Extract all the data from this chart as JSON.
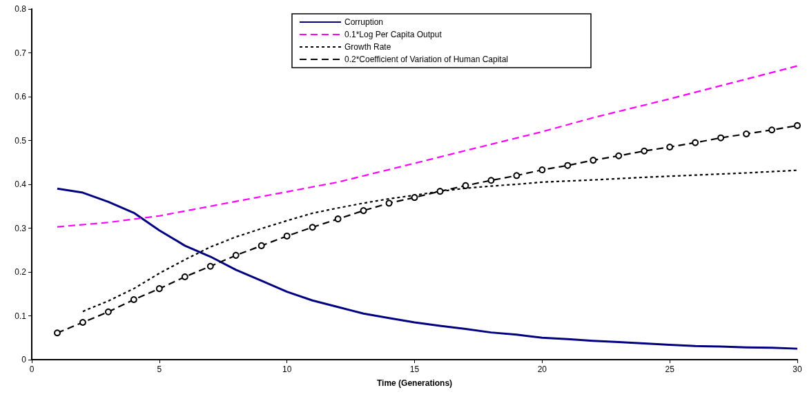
{
  "chart_data": {
    "type": "line",
    "xlabel": "Time (Generations)",
    "xlim": [
      0,
      30
    ],
    "xticks": [
      0,
      5,
      10,
      15,
      20,
      25,
      30
    ],
    "ylim": [
      0,
      0.8
    ],
    "yticks": [
      0,
      0.1,
      0.2,
      0.3,
      0.4,
      0.5,
      0.6,
      0.7,
      0.8
    ],
    "grid": false,
    "legend": "top",
    "series": [
      {
        "name": "Corruption",
        "color": "#000080",
        "line_style": "solid",
        "marker": "none",
        "x": [
          1,
          2,
          3,
          4,
          5,
          6,
          7,
          8,
          9,
          10,
          11,
          12,
          13,
          14,
          15,
          16,
          17,
          18,
          19,
          20,
          21,
          22,
          23,
          24,
          25,
          26,
          27,
          28,
          29,
          30
        ],
        "values": [
          0.39,
          0.381,
          0.36,
          0.335,
          0.295,
          0.26,
          0.235,
          0.205,
          0.18,
          0.155,
          0.135,
          0.12,
          0.105,
          0.095,
          0.085,
          0.077,
          0.07,
          0.062,
          0.057,
          0.05,
          0.047,
          0.043,
          0.04,
          0.037,
          0.034,
          0.031,
          0.03,
          0.028,
          0.027,
          0.025
        ]
      },
      {
        "name": "0.1*Log Per Capita Output",
        "color": "#ff00ff",
        "line_style": "dashed",
        "marker": "none",
        "x": [
          1,
          3,
          5,
          7,
          10,
          12,
          15,
          17,
          20,
          22,
          25,
          27,
          30
        ],
        "values": [
          0.303,
          0.313,
          0.328,
          0.35,
          0.383,
          0.405,
          0.448,
          0.477,
          0.52,
          0.552,
          0.595,
          0.625,
          0.67
        ]
      },
      {
        "name": "Growth Rate",
        "color": "#000000",
        "line_style": "dotted",
        "marker": "none",
        "x": [
          2,
          3,
          4,
          5,
          6,
          7,
          8,
          9,
          10,
          11,
          12,
          13,
          14,
          15,
          16,
          17,
          18,
          19,
          20,
          22,
          24,
          26,
          28,
          30
        ],
        "values": [
          0.11,
          0.134,
          0.162,
          0.197,
          0.228,
          0.257,
          0.28,
          0.299,
          0.317,
          0.334,
          0.346,
          0.357,
          0.367,
          0.375,
          0.384,
          0.391,
          0.396,
          0.4,
          0.405,
          0.41,
          0.416,
          0.421,
          0.426,
          0.432
        ]
      },
      {
        "name": "0.2*Coefficient of Variation of Human Capital",
        "color": "#000000",
        "line_style": "dashed",
        "marker": "circle",
        "x": [
          1,
          2,
          3,
          4,
          5,
          6,
          7,
          8,
          9,
          10,
          11,
          12,
          13,
          14,
          15,
          16,
          17,
          18,
          19,
          20,
          21,
          22,
          23,
          24,
          25,
          26,
          27,
          28,
          29,
          30
        ],
        "values": [
          0.061,
          0.085,
          0.109,
          0.137,
          0.162,
          0.189,
          0.213,
          0.238,
          0.26,
          0.282,
          0.302,
          0.321,
          0.34,
          0.357,
          0.37,
          0.384,
          0.397,
          0.409,
          0.42,
          0.433,
          0.443,
          0.455,
          0.465,
          0.476,
          0.485,
          0.495,
          0.506,
          0.515,
          0.524,
          0.534
        ]
      }
    ]
  }
}
